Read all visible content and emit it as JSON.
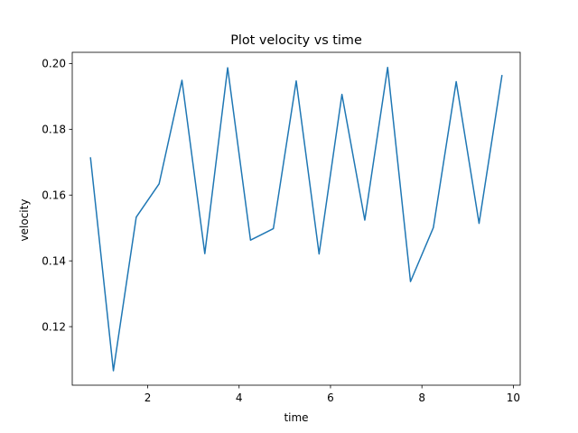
{
  "chart_data": {
    "type": "line",
    "title": "Plot velocity vs time",
    "xlabel": "time",
    "ylabel": "velocity",
    "xlim": [
      0.35,
      10.15
    ],
    "ylim": [
      0.1022,
      0.2034
    ],
    "grid": false,
    "x_ticks": [
      2,
      4,
      6,
      8,
      10
    ],
    "x_tick_labels": [
      "2",
      "4",
      "6",
      "8",
      "10"
    ],
    "y_ticks": [
      0.12,
      0.14,
      0.16,
      0.18,
      0.2
    ],
    "y_tick_labels": [
      "0.12",
      "0.14",
      "0.16",
      "0.18",
      "0.20"
    ],
    "line_color": "#1f77b4",
    "series": [
      {
        "x": [
          0.75,
          1.25,
          1.75,
          2.25,
          2.75,
          3.25,
          3.75,
          4.25,
          4.75,
          5.25,
          5.75,
          6.25,
          6.75,
          7.25,
          7.75,
          8.25,
          8.75,
          9.25,
          9.75
        ],
        "values": [
          0.1713,
          0.1066,
          0.1533,
          0.1634,
          0.1949,
          0.1422,
          0.1987,
          0.1463,
          0.1498,
          0.1947,
          0.1421,
          0.1906,
          0.1524,
          0.1988,
          0.1337,
          0.1501,
          0.1945,
          0.1514,
          0.1963
        ]
      }
    ]
  }
}
